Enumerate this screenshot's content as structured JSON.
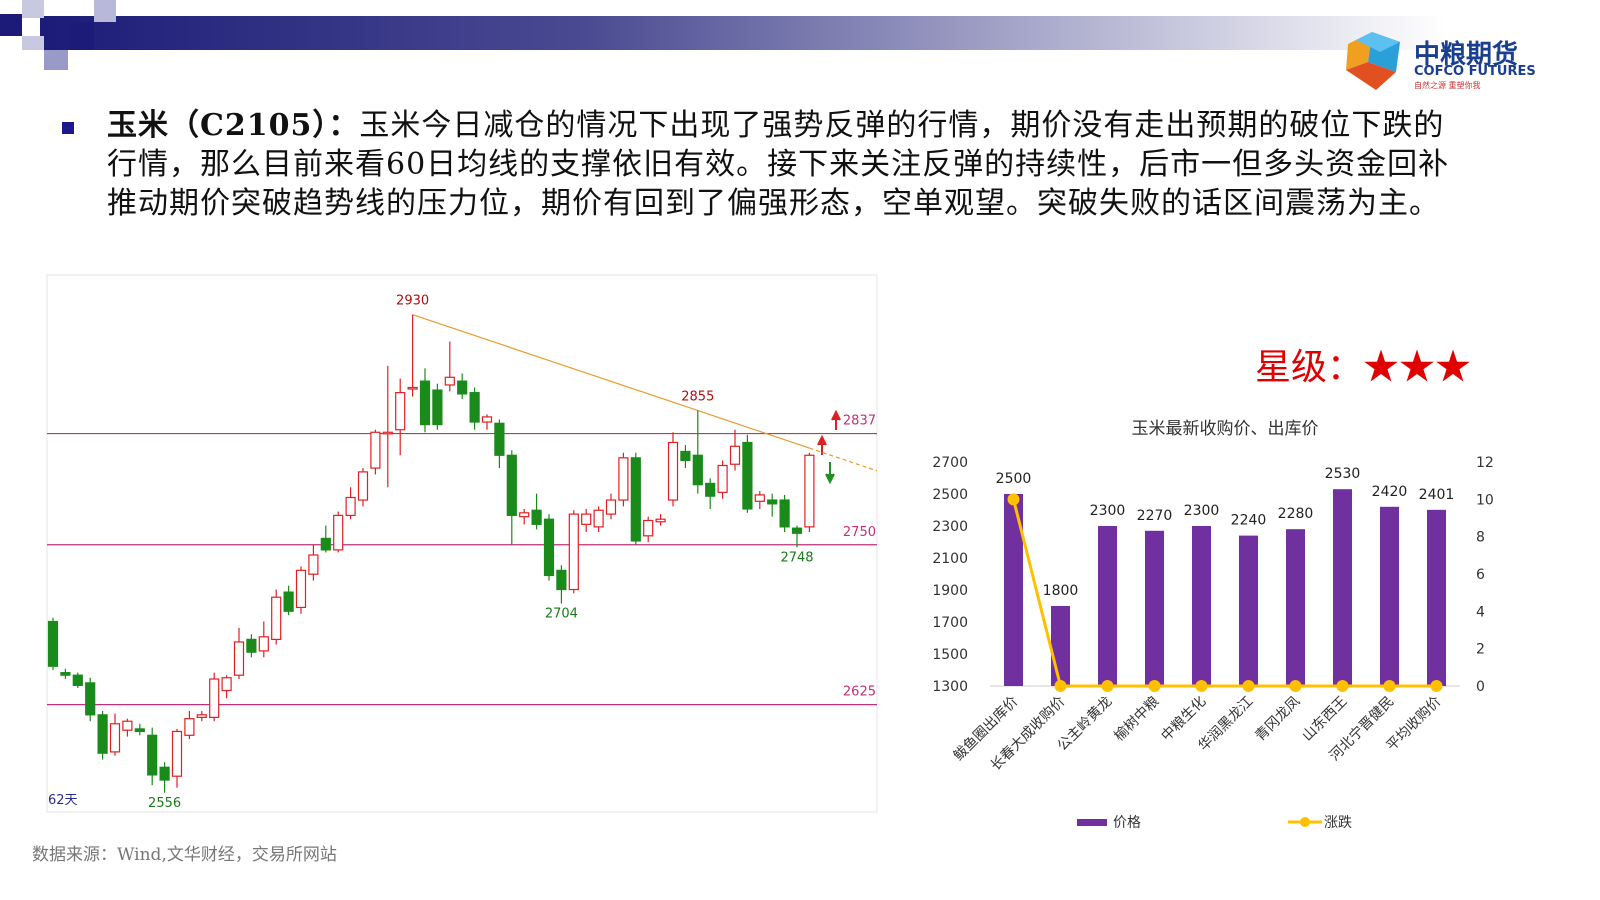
{
  "header": {
    "logo_name": "中粮期货",
    "logo_en": "COFCO FUTURES",
    "logo_slogan": "自然之源 重塑你我"
  },
  "bullet": {
    "title": "玉米（C2105）：",
    "lines": [
      "玉米今日减仓的情况下出现了强势反弹的行情，期价没有走出预期的破位下跌的",
      "行情，那么目前来看60日均线的支撑依旧有效。接下来关注反弹的持续性，后市一但多头资金回补",
      "推动期价突破趋势线的压力位，期价有回到了偏强形态，空单观望。突破失败的话区间震荡为主。"
    ]
  },
  "rating": "星级：★★★",
  "source": "数据来源：Wind,文华财经，交易所网站",
  "chart_data": [
    {
      "type": "candlestick",
      "period_label": "62天",
      "open": [
        2690,
        2650,
        2648,
        2642,
        2617,
        2588,
        2605,
        2606,
        2601,
        2576,
        2569,
        2601,
        2615,
        2615,
        2636,
        2648,
        2676,
        2667,
        2676,
        2713,
        2701,
        2727,
        2755,
        2746,
        2773,
        2785,
        2810,
        2837,
        2840,
        2872,
        2878,
        2871,
        2875,
        2878,
        2869,
        2846,
        2845,
        2820,
        2772,
        2777,
        2770,
        2730,
        2715,
        2766,
        2764,
        2774,
        2785,
        2818,
        2757,
        2768,
        2785,
        2823,
        2820,
        2798,
        2791,
        2813,
        2830,
        2784,
        2785,
        2785,
        2763,
        2764
      ],
      "high": [
        2693,
        2653,
        2650,
        2646,
        2620,
        2618,
        2614,
        2610,
        2607,
        2580,
        2606,
        2620,
        2620,
        2650,
        2648,
        2685,
        2680,
        2690,
        2715,
        2718,
        2733,
        2750,
        2765,
        2776,
        2795,
        2810,
        2840,
        2890,
        2880,
        2930,
        2888,
        2876,
        2909,
        2884,
        2873,
        2852,
        2848,
        2824,
        2778,
        2790,
        2774,
        2734,
        2777,
        2778,
        2780,
        2790,
        2822,
        2822,
        2772,
        2774,
        2838,
        2828,
        2855,
        2802,
        2816,
        2840,
        2836,
        2792,
        2790,
        2789,
        2765,
        2822
      ],
      "low": [
        2652,
        2645,
        2638,
        2612,
        2582,
        2585,
        2600,
        2601,
        2562,
        2556,
        2560,
        2598,
        2612,
        2612,
        2630,
        2645,
        2662,
        2662,
        2672,
        2695,
        2696,
        2722,
        2744,
        2744,
        2770,
        2780,
        2805,
        2795,
        2820,
        2866,
        2838,
        2840,
        2870,
        2864,
        2840,
        2840,
        2810,
        2750,
        2766,
        2762,
        2722,
        2704,
        2712,
        2760,
        2760,
        2770,
        2780,
        2750,
        2752,
        2765,
        2780,
        2810,
        2790,
        2778,
        2786,
        2808,
        2775,
        2778,
        2772,
        2760,
        2748,
        2760
      ],
      "close": [
        2655,
        2648,
        2640,
        2617,
        2587,
        2610,
        2612,
        2604,
        2570,
        2566,
        2604,
        2614,
        2617,
        2645,
        2646,
        2674,
        2666,
        2678,
        2709,
        2698,
        2730,
        2742,
        2746,
        2773,
        2787,
        2807,
        2838,
        2838,
        2869,
        2873,
        2844,
        2844,
        2881,
        2868,
        2846,
        2850,
        2820,
        2773,
        2775,
        2766,
        2726,
        2715,
        2774,
        2774,
        2777,
        2785,
        2818,
        2753,
        2769,
        2770,
        2830,
        2816,
        2797,
        2788,
        2812,
        2827,
        2778,
        2789,
        2782,
        2764,
        2759,
        2820
      ],
      "up_color": "#e02020",
      "down_color": "#1a8a1a",
      "ylim": [
        2541,
        2961
      ],
      "levels": [
        2837,
        2750,
        2625
      ],
      "level_color": "#c0307a",
      "annotations": [
        2930,
        2855,
        2748,
        2704,
        2556
      ],
      "trend_color": "#e89a30"
    },
    {
      "type": "bar",
      "title": "玉米最新收购价、出库价",
      "categories": [
        "鲅鱼圈出库价",
        "长春大成收购价",
        "公主岭黄龙",
        "榆树中粮",
        "中粮生化",
        "华润黑龙江",
        "青冈龙凤",
        "山东西王",
        "河北宁晋健民",
        "平均收购价"
      ],
      "series": [
        {
          "name": "价格",
          "color": "#7030a0",
          "values": [
            2500,
            1800,
            2300,
            2270,
            2300,
            2240,
            2280,
            2530,
            2420,
            2401
          ]
        },
        {
          "name": "涨跌",
          "color": "#ffc000",
          "type": "line",
          "axis": "y2",
          "values": [
            10,
            0,
            0,
            0,
            0,
            0,
            0,
            0,
            0,
            0
          ]
        }
      ],
      "ylim": [
        1300,
        2700
      ],
      "yticks": [
        1300,
        1500,
        1700,
        1900,
        2100,
        2300,
        2500,
        2700
      ],
      "y2lim": [
        0,
        12
      ],
      "y2ticks": [
        0,
        2,
        4,
        6,
        8,
        10,
        12
      ],
      "grid": false,
      "legend": "bottom"
    }
  ]
}
